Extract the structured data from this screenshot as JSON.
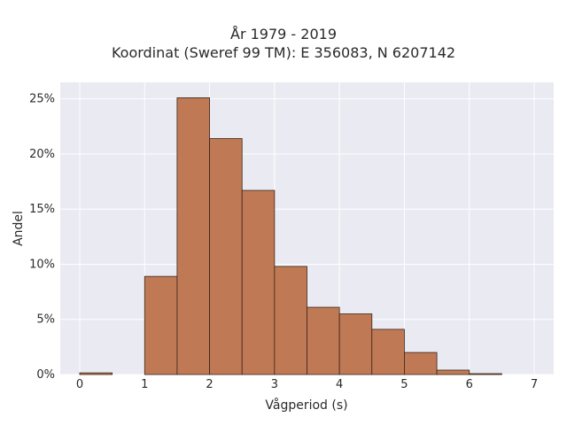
{
  "chart_data": {
    "type": "bar",
    "title": "År 1979 - 2019",
    "subtitle": "Koordinat (Sweref 99 TM): E 356083, N 6207142",
    "xlabel": "Vågperiod (s)",
    "ylabel": "Andel",
    "xlim": [
      -0.3,
      7.3
    ],
    "ylim": [
      0,
      26.5
    ],
    "xticks": [
      0,
      1,
      2,
      3,
      4,
      5,
      6,
      7
    ],
    "yticks": [
      0,
      5,
      10,
      15,
      20,
      25
    ],
    "ytick_labels": [
      "0%",
      "5%",
      "10%",
      "15%",
      "20%",
      "25%"
    ],
    "grid": true,
    "bar_color": "#bf7a55",
    "bar_edge_color": "#3a2418",
    "background_color": "#eaeaf2",
    "bins": [
      {
        "x0": 0.0,
        "x1": 0.5,
        "value": 0.15
      },
      {
        "x0": 0.5,
        "x1": 1.0,
        "value": 0.0
      },
      {
        "x0": 1.0,
        "x1": 1.5,
        "value": 8.9
      },
      {
        "x0": 1.5,
        "x1": 2.0,
        "value": 25.1
      },
      {
        "x0": 2.0,
        "x1": 2.5,
        "value": 21.4
      },
      {
        "x0": 2.5,
        "x1": 3.0,
        "value": 16.7
      },
      {
        "x0": 3.0,
        "x1": 3.5,
        "value": 9.8
      },
      {
        "x0": 3.5,
        "x1": 4.0,
        "value": 6.1
      },
      {
        "x0": 4.0,
        "x1": 4.5,
        "value": 5.5
      },
      {
        "x0": 4.5,
        "x1": 5.0,
        "value": 4.1
      },
      {
        "x0": 5.0,
        "x1": 5.5,
        "value": 2.0
      },
      {
        "x0": 5.5,
        "x1": 6.0,
        "value": 0.4
      },
      {
        "x0": 6.0,
        "x1": 6.5,
        "value": 0.08
      }
    ]
  }
}
